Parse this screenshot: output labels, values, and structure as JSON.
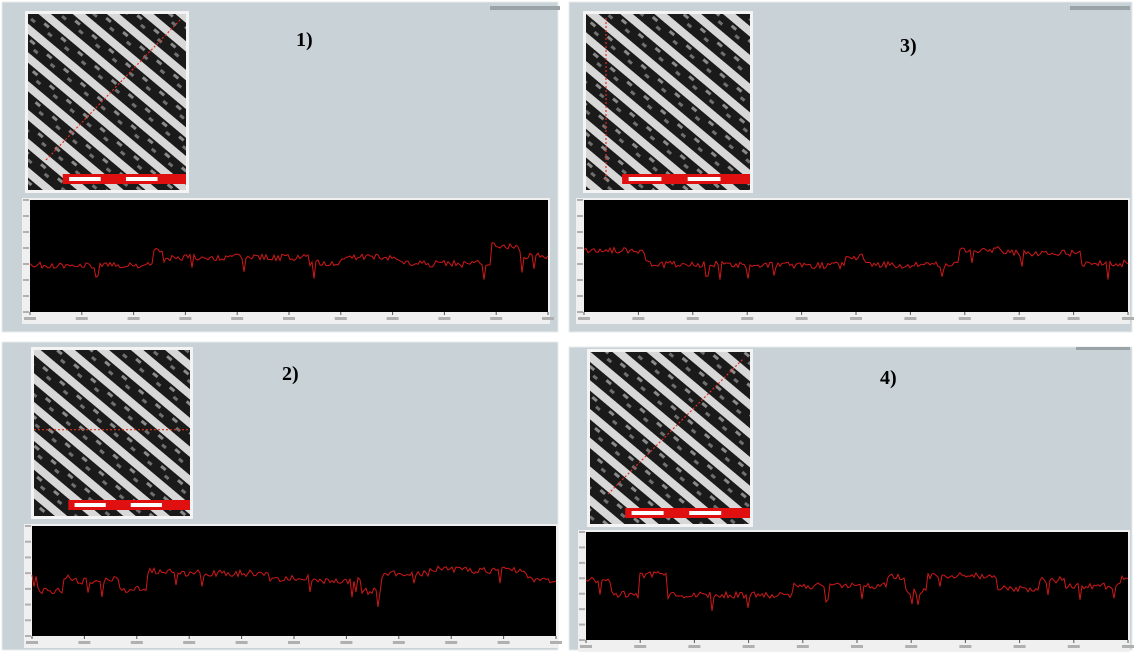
{
  "panels": [
    {
      "label": "1)"
    },
    {
      "label": "2)"
    },
    {
      "label": "3)"
    },
    {
      "label": "4)"
    }
  ]
}
